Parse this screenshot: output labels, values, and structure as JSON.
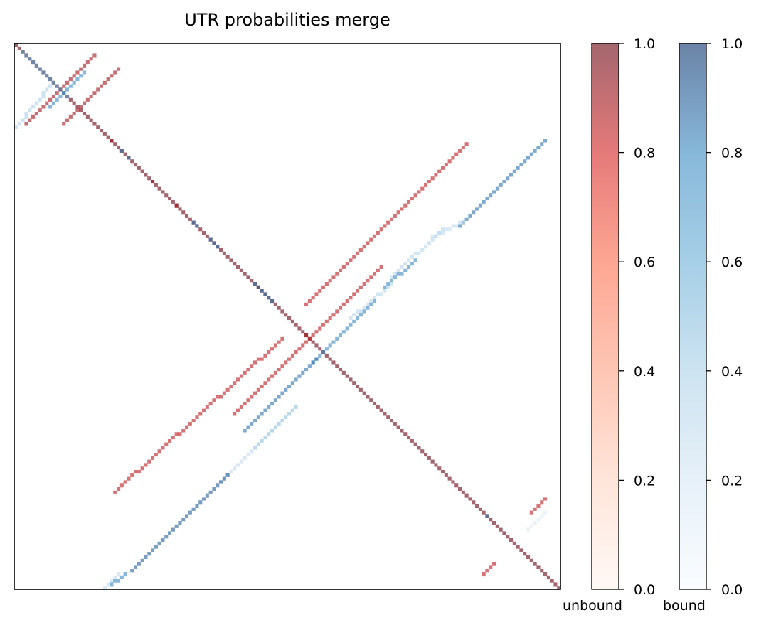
{
  "chart_data": {
    "type": "heatmap",
    "title": "UTR probabilities merge",
    "grid_size": 160,
    "xticks": [],
    "yticks": [],
    "colorbars": [
      {
        "name": "unbound",
        "label": "unbound",
        "cmap": "Reds",
        "alpha": 0.6,
        "range": [
          0.0,
          1.0
        ],
        "ticks": [
          "0.0",
          "0.2",
          "0.4",
          "0.6",
          "0.8",
          "1.0"
        ]
      },
      {
        "name": "bound",
        "label": "bound",
        "cmap": "Blues",
        "alpha": 0.6,
        "range": [
          0.0,
          1.0
        ],
        "ticks": [
          "0.0",
          "0.2",
          "0.4",
          "0.6",
          "0.8",
          "1.0"
        ]
      }
    ],
    "layers": {
      "unbound": [
        {
          "points": [
            [
              0,
              0
            ],
            [
              159,
              159
            ]
          ],
          "value": 1.0
        },
        {
          "from": [
            23,
            3
          ],
          "to": [
            3,
            23
          ],
          "value": 0.9
        },
        {
          "from": [
            30,
            7
          ],
          "to": [
            14,
            23
          ],
          "value": 0.9
        },
        {
          "from": [
            132,
            29
          ],
          "to": [
            85,
            76
          ],
          "value": 0.85
        },
        {
          "from": [
            107,
            65
          ],
          "to": [
            64,
            108
          ],
          "value": 0.85
        },
        {
          "from": [
            78,
            86
          ],
          "to": [
            29,
            131
          ],
          "value": 0.85
        },
        {
          "from": [
            155,
            133
          ],
          "to": [
            151,
            137
          ],
          "value": 0.85
        },
        {
          "from": [
            140,
            152
          ],
          "to": [
            137,
            155
          ],
          "value": 0.85
        },
        {
          "points": [
            [
              28,
              28
            ],
            [
              40,
              40
            ],
            [
              47,
              47
            ],
            [
              71,
              71
            ],
            [
              85,
              85
            ]
          ],
          "value": 0.9
        }
      ],
      "bound": [
        {
          "from": [
            2,
            2
          ],
          "to": [
            15,
            15
          ],
          "value": 0.7
        },
        {
          "from": [
            20,
            8
          ],
          "to": [
            10,
            18
          ],
          "value": 0.8
        },
        {
          "from": [
            10,
            12
          ],
          "to": [
            0,
            24
          ],
          "value": 0.4
        },
        {
          "from": [
            155,
            28
          ],
          "to": [
            130,
            53
          ],
          "value": 0.85
        },
        {
          "from": [
            131,
            52
          ],
          "to": [
            122,
            56
          ],
          "value": 0.3
        },
        {
          "from": [
            125,
            54
          ],
          "to": [
            110,
            68
          ],
          "value": 0.35
        },
        {
          "from": [
            117,
            63
          ],
          "to": [
            108,
            71
          ],
          "value": 0.8
        },
        {
          "from": [
            110,
            70
          ],
          "to": [
            98,
            80
          ],
          "value": 0.35
        },
        {
          "from": [
            105,
            75
          ],
          "to": [
            87,
            93
          ],
          "value": 0.8
        },
        {
          "from": [
            88,
            92
          ],
          "to": [
            67,
            113
          ],
          "value": 0.85
        },
        {
          "from": [
            82,
            106
          ],
          "to": [
            70,
            118
          ],
          "value": 0.5
        },
        {
          "from": [
            70,
            118
          ],
          "to": [
            60,
            128
          ],
          "value": 0.3
        },
        {
          "from": [
            62,
            126
          ],
          "to": [
            34,
            154
          ],
          "value": 0.9
        },
        {
          "from": [
            30,
            155
          ],
          "to": [
            26,
            159
          ],
          "value": 0.3
        },
        {
          "from": [
            32,
            155
          ],
          "to": [
            28,
            158
          ],
          "value": 0.8
        },
        {
          "from": [
            155,
            137
          ],
          "to": [
            150,
            142
          ],
          "value": 0.15
        },
        {
          "points": [
            [
              31,
              31
            ],
            [
              33,
              33
            ],
            [
              52,
              52
            ],
            [
              53,
              53
            ],
            [
              57,
              57
            ],
            [
              58,
              58
            ],
            [
              59,
              59
            ],
            [
              70,
              70
            ],
            [
              71,
              71
            ],
            [
              72,
              72
            ],
            [
              73,
              73
            ],
            [
              74,
              74
            ],
            [
              75,
              75
            ],
            [
              138,
              138
            ]
          ],
          "value": 0.85
        }
      ]
    }
  }
}
